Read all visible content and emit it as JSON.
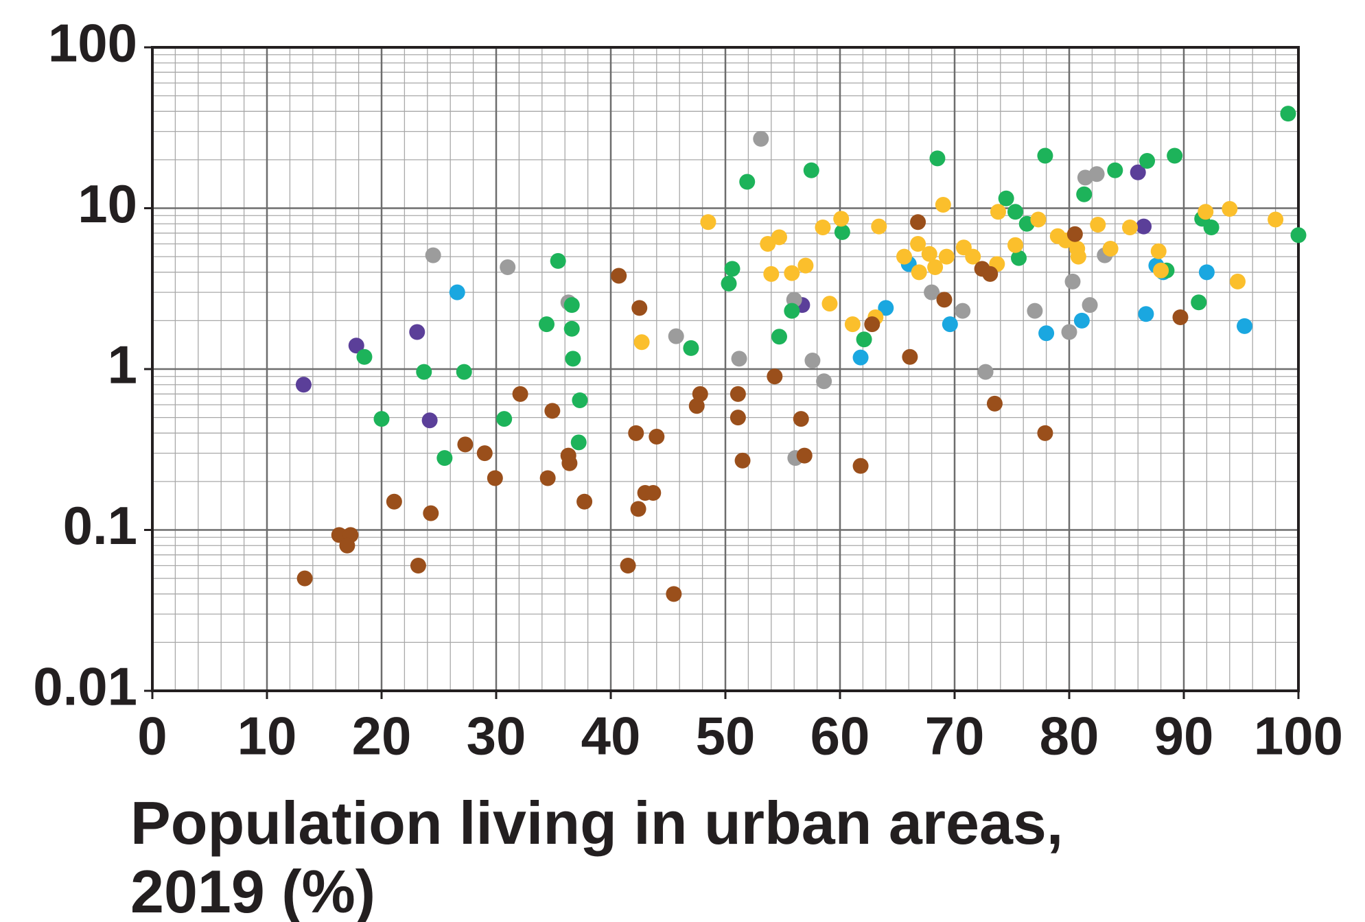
{
  "chart_data": {
    "type": "scatter",
    "xlabel": "Population living in urban areas, 2019 (%)",
    "xlim": [
      0,
      100
    ],
    "xticks": [
      0,
      10,
      20,
      30,
      40,
      50,
      60,
      70,
      80,
      90,
      100
    ],
    "ylim": [
      0.01,
      100
    ],
    "yticks": [
      100,
      10,
      1,
      0.1,
      0.01
    ],
    "log_y": true,
    "grid": true,
    "minor_grid": true,
    "series": [
      {
        "color": "#5b3f99",
        "x": [
          13.2,
          17.8,
          23.1,
          24.2,
          56.7,
          86.0,
          86.5
        ],
        "values": [
          0.8,
          1.4,
          1.7,
          0.48,
          2.5,
          16.7,
          7.7
        ]
      },
      {
        "color": "#1aa7e0",
        "x": [
          26.6,
          66.0,
          64.0,
          61.8,
          69.6,
          78.0,
          81.1,
          86.7,
          87.6,
          88.2,
          92.0,
          95.3
        ],
        "values": [
          3.0,
          4.5,
          2.4,
          1.18,
          1.9,
          1.67,
          2.0,
          2.2,
          4.4,
          4.0,
          4.0,
          1.85
        ]
      },
      {
        "color": "#9c9c9c",
        "x": [
          24.5,
          31.0,
          36.3,
          45.7,
          51.2,
          53.1,
          56.0,
          57.6,
          58.6,
          56.1,
          68.0,
          70.7,
          72.7,
          77.0,
          80.0,
          80.3,
          81.8,
          81.4,
          82.4,
          83.1
        ],
        "values": [
          5.1,
          4.3,
          2.6,
          1.6,
          1.16,
          27,
          2.7,
          1.13,
          0.84,
          0.28,
          3.0,
          2.3,
          0.96,
          2.3,
          1.7,
          3.5,
          2.5,
          15.5,
          16.3,
          5.1
        ]
      },
      {
        "color": "#1db35a",
        "x": [
          18.5,
          20.0,
          23.7,
          25.5,
          27.2,
          30.7,
          35.4,
          34.4,
          36.6,
          36.6,
          36.7,
          37.3,
          37.2,
          47.0,
          50.6,
          50.3,
          51.9,
          54.7,
          55.8,
          57.5,
          60.2,
          62.1,
          68.5,
          74.5,
          75.3,
          76.3,
          75.6,
          77.9,
          81.3,
          84.0,
          86.8,
          89.2,
          88.5,
          91.3,
          91.6,
          92.4,
          99.1,
          100
        ],
        "values": [
          1.19,
          0.49,
          0.96,
          0.28,
          0.96,
          0.49,
          4.7,
          1.9,
          2.5,
          1.78,
          1.16,
          0.64,
          0.35,
          1.35,
          4.2,
          3.4,
          14.6,
          1.59,
          2.3,
          17.2,
          7.1,
          1.53,
          20.4,
          11.5,
          9.5,
          8.0,
          4.9,
          21.2,
          12.2,
          17.2,
          19.7,
          21.2,
          4.1,
          2.6,
          8.6,
          7.6,
          38.7,
          6.8
        ]
      },
      {
        "color": "#fbbf2c",
        "x": [
          48.5,
          42.7,
          53.7,
          54.7,
          54.0,
          55.8,
          57.0,
          58.5,
          60.1,
          59.1,
          61.1,
          63.1,
          63.4,
          65.6,
          66.8,
          66.9,
          67.8,
          68.3,
          69.0,
          69.3,
          70.8,
          71.6,
          73.7,
          73.8,
          75.3,
          77.3,
          79.0,
          79.7,
          80.7,
          80.8,
          82.5,
          83.6,
          85.3,
          87.8,
          88.0,
          91.9,
          94.0,
          94.7,
          98.0
        ],
        "values": [
          8.2,
          1.47,
          6.0,
          6.6,
          3.9,
          3.95,
          4.4,
          7.6,
          8.6,
          2.55,
          1.9,
          2.1,
          7.7,
          5.0,
          6.0,
          4.0,
          5.2,
          4.3,
          10.5,
          5.0,
          5.7,
          5.0,
          4.5,
          9.5,
          5.9,
          8.5,
          6.7,
          6.3,
          5.6,
          5.0,
          7.9,
          5.6,
          7.6,
          5.4,
          4.1,
          9.5,
          9.9,
          3.5,
          8.5
        ]
      },
      {
        "color": "#9a4f1b",
        "x": [
          13.3,
          16.3,
          17.3,
          17.0,
          21.1,
          23.2,
          24.3,
          27.3,
          29.0,
          29.9,
          32.1,
          34.5,
          34.9,
          36.3,
          36.4,
          37.7,
          40.7,
          41.5,
          42.2,
          42.4,
          42.5,
          43.0,
          43.7,
          44.0,
          45.5,
          47.5,
          47.8,
          51.1,
          51.1,
          51.5,
          54.3,
          56.6,
          56.9,
          61.8,
          62.8,
          66.1,
          66.8,
          69.1,
          72.4,
          73.1,
          73.5,
          77.9,
          80.5,
          89.7
        ],
        "values": [
          0.05,
          0.093,
          0.093,
          0.08,
          0.15,
          0.06,
          0.127,
          0.34,
          0.3,
          0.21,
          0.7,
          0.21,
          0.55,
          0.29,
          0.26,
          0.15,
          3.8,
          0.06,
          0.4,
          0.135,
          2.4,
          0.17,
          0.17,
          0.38,
          0.04,
          0.59,
          0.7,
          0.7,
          0.5,
          0.27,
          0.9,
          0.49,
          0.29,
          0.25,
          1.9,
          1.19,
          8.2,
          2.7,
          4.2,
          3.9,
          0.61,
          0.4,
          6.9,
          2.1
        ]
      }
    ]
  }
}
